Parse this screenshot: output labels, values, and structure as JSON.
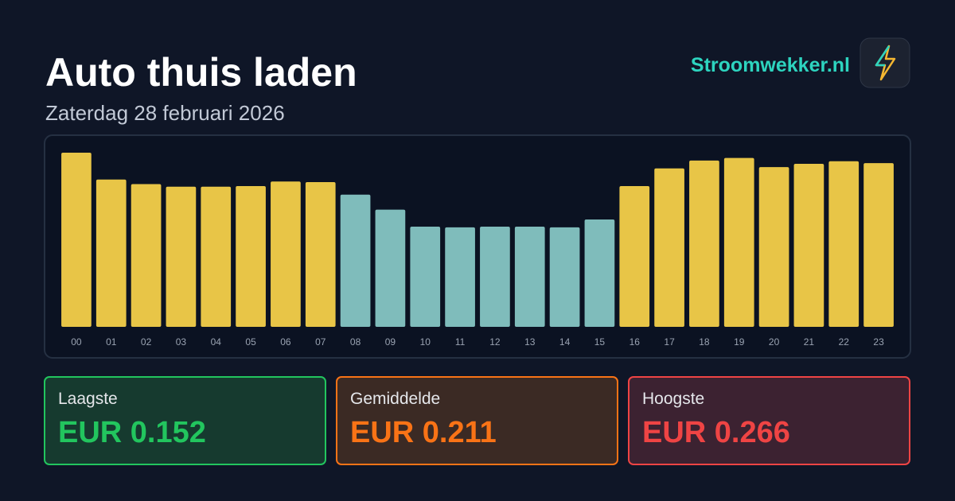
{
  "chart_data": {
    "type": "bar",
    "title": "Auto thuis laden",
    "subtitle": "Zaterdag 28 februari 2026",
    "brand": "Stroomwekker.nl",
    "categories": [
      "00",
      "01",
      "02",
      "03",
      "04",
      "05",
      "06",
      "07",
      "08",
      "09",
      "10",
      "11",
      "12",
      "13",
      "14",
      "15",
      "16",
      "17",
      "18",
      "19",
      "20",
      "21",
      "22",
      "23"
    ],
    "values": [
      0.266,
      0.225,
      0.218,
      0.214,
      0.214,
      0.215,
      0.222,
      0.221,
      0.202,
      0.179,
      0.153,
      0.152,
      0.153,
      0.153,
      0.152,
      0.164,
      0.215,
      0.242,
      0.254,
      0.258,
      0.244,
      0.249,
      0.253,
      0.25
    ],
    "colors": [
      "#e8c547",
      "#e8c547",
      "#e8c547",
      "#e8c547",
      "#e8c547",
      "#e8c547",
      "#e8c547",
      "#e8c547",
      "#7fbcbb",
      "#7fbcbb",
      "#7fbcbb",
      "#7fbcbb",
      "#7fbcbb",
      "#7fbcbb",
      "#7fbcbb",
      "#7fbcbb",
      "#e8c547",
      "#e8c547",
      "#e8c547",
      "#e8c547",
      "#e8c547",
      "#e8c547",
      "#e8c547",
      "#e8c547"
    ],
    "stats": [
      {
        "label": "Laagste",
        "value": "EUR 0.152",
        "color": "#22c55e",
        "background": "#163a2f"
      },
      {
        "label": "Gemiddelde",
        "value": "EUR 0.211",
        "color": "#f97316",
        "background": "#3b2a24"
      },
      {
        "label": "Hoogste",
        "value": "EUR 0.266",
        "color": "#ef4444",
        "background": "#3c2231"
      }
    ]
  }
}
